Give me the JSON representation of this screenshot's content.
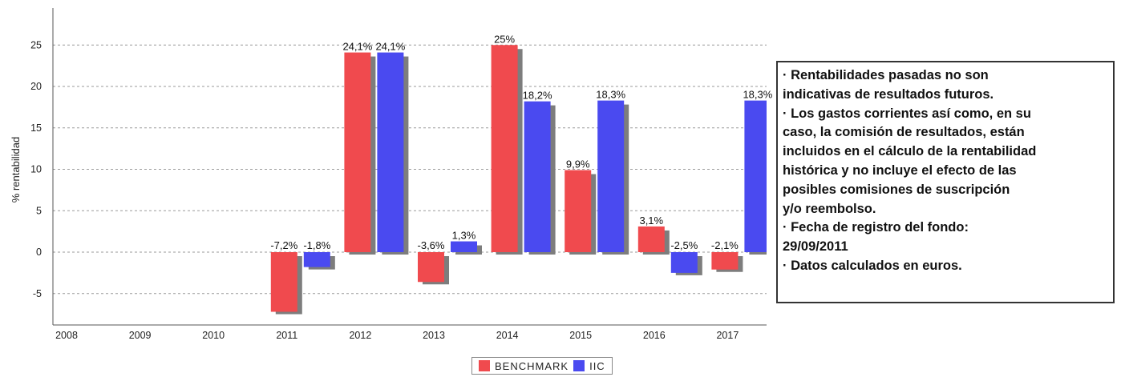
{
  "chart_data": {
    "type": "bar",
    "ylabel": "% rentabilidad",
    "ylim": [
      -8,
      28
    ],
    "yticks": [
      -5,
      0,
      5,
      10,
      15,
      20,
      25
    ],
    "grid": true,
    "legend_position": "bottom",
    "categories": [
      "2008",
      "2009",
      "2010",
      "2011",
      "2012",
      "2013",
      "2014",
      "2015",
      "2016",
      "2017"
    ],
    "series": [
      {
        "name": "BENCHMARK",
        "color": "#f04a4e",
        "values": [
          null,
          null,
          null,
          -7.2,
          24.1,
          -3.6,
          25,
          9.9,
          3.1,
          -2.1
        ],
        "labels": [
          null,
          null,
          null,
          "-7,2%",
          "24,1%",
          "-3,6%",
          "25%",
          "9,9%",
          "3,1%",
          "-2,1%"
        ]
      },
      {
        "name": "IIC",
        "color": "#4a4af0",
        "values": [
          null,
          null,
          null,
          -1.8,
          24.1,
          1.3,
          18.2,
          18.3,
          -2.5,
          18.3
        ],
        "labels": [
          null,
          null,
          null,
          "-1,8%",
          "24,1%",
          "1,3%",
          "18,2%",
          "18,3%",
          "-2,5%",
          "18,3%"
        ]
      }
    ]
  },
  "notes": {
    "lines": [
      "· Rentabilidades pasadas no son",
      " indicativas de resultados futuros.",
      "· Los gastos corrientes así como, en su",
      "caso, la comisión de resultados, están",
      " incluidos en el cálculo de la rentabilidad",
      " histórica y no incluye el efecto de las",
      " posibles comisiones de suscripción",
      "y/o reembolso.",
      "· Fecha de registro del fondo:",
      " 29/09/2011",
      "· Datos calculados en euros."
    ]
  },
  "legend": {
    "items": [
      {
        "label": "BENCHMARK",
        "color": "#f04a4e"
      },
      {
        "label": "IIC",
        "color": "#4a4af0"
      }
    ]
  }
}
